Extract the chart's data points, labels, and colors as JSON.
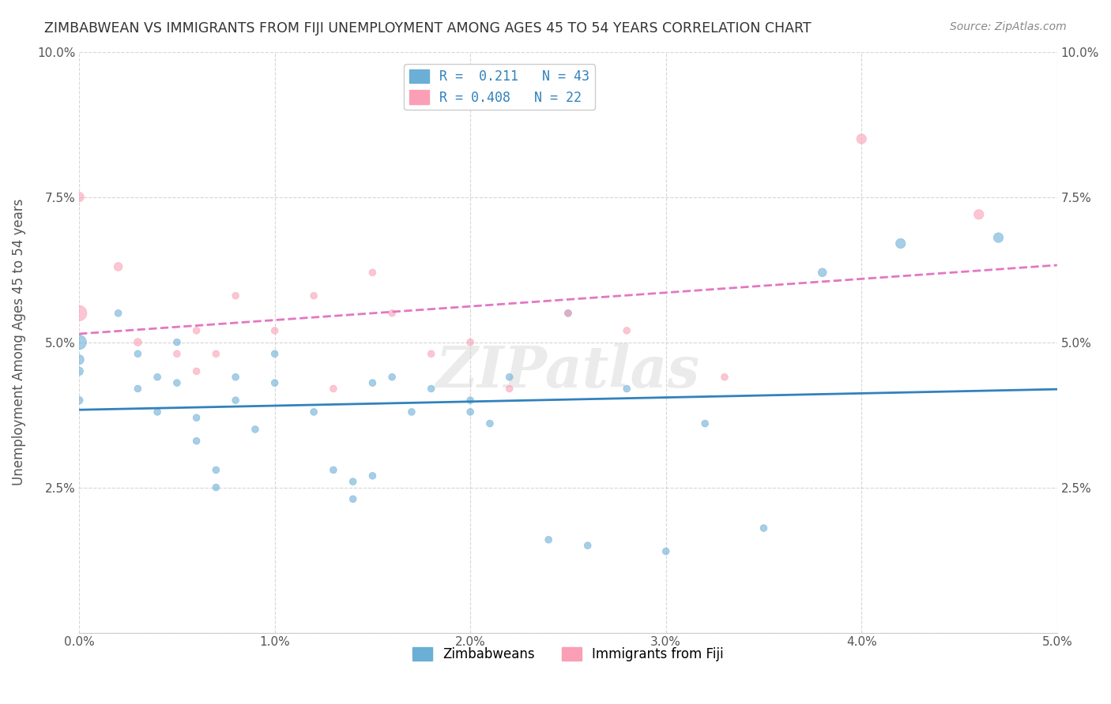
{
  "title": "ZIMBABWEAN VS IMMIGRANTS FROM FIJI UNEMPLOYMENT AMONG AGES 45 TO 54 YEARS CORRELATION CHART",
  "source": "Source: ZipAtlas.com",
  "ylabel": "Unemployment Among Ages 45 to 54 years",
  "xlabel": "",
  "xlim": [
    0.0,
    0.05
  ],
  "ylim": [
    0.0,
    0.1
  ],
  "xticks": [
    0.0,
    0.01,
    0.02,
    0.03,
    0.04,
    0.05
  ],
  "yticks": [
    0.0,
    0.025,
    0.05,
    0.075,
    0.1
  ],
  "xtick_labels": [
    "0.0%",
    "1.0%",
    "2.0%",
    "3.0%",
    "4.0%",
    "5.0%"
  ],
  "ytick_labels": [
    "",
    "2.5%",
    "5.0%",
    "7.5%",
    "10.0%"
  ],
  "blue_color": "#6baed6",
  "pink_color": "#fa9fb5",
  "blue_line_color": "#3182bd",
  "pink_line_color": "#e377c2",
  "legend_r1": "R =  0.211",
  "legend_n1": "N = 43",
  "legend_r2": "R = 0.408",
  "legend_n2": "N = 22",
  "legend_label1": "Zimbabweans",
  "legend_label2": "Immigrants from Fiji",
  "blue_x": [
    0.0,
    0.0,
    0.0,
    0.0,
    0.002,
    0.003,
    0.003,
    0.004,
    0.004,
    0.005,
    0.005,
    0.006,
    0.006,
    0.007,
    0.007,
    0.008,
    0.008,
    0.009,
    0.01,
    0.01,
    0.012,
    0.013,
    0.014,
    0.014,
    0.015,
    0.015,
    0.016,
    0.017,
    0.018,
    0.02,
    0.02,
    0.021,
    0.022,
    0.024,
    0.025,
    0.026,
    0.028,
    0.03,
    0.032,
    0.035,
    0.038,
    0.042,
    0.047
  ],
  "blue_y": [
    0.05,
    0.047,
    0.045,
    0.04,
    0.055,
    0.048,
    0.042,
    0.038,
    0.044,
    0.05,
    0.043,
    0.037,
    0.033,
    0.028,
    0.025,
    0.04,
    0.044,
    0.035,
    0.043,
    0.048,
    0.038,
    0.028,
    0.026,
    0.023,
    0.027,
    0.043,
    0.044,
    0.038,
    0.042,
    0.04,
    0.038,
    0.036,
    0.044,
    0.016,
    0.055,
    0.015,
    0.042,
    0.014,
    0.036,
    0.018,
    0.062,
    0.067,
    0.068
  ],
  "blue_sizes": [
    180,
    80,
    60,
    50,
    40,
    40,
    40,
    40,
    40,
    40,
    40,
    40,
    40,
    40,
    40,
    40,
    40,
    40,
    40,
    40,
    40,
    40,
    40,
    40,
    40,
    40,
    40,
    40,
    40,
    40,
    40,
    40,
    40,
    40,
    40,
    40,
    40,
    40,
    40,
    40,
    60,
    80,
    80
  ],
  "pink_x": [
    0.0,
    0.0,
    0.002,
    0.003,
    0.005,
    0.006,
    0.006,
    0.007,
    0.008,
    0.01,
    0.012,
    0.013,
    0.015,
    0.016,
    0.018,
    0.02,
    0.022,
    0.025,
    0.028,
    0.033,
    0.04,
    0.046
  ],
  "pink_y": [
    0.055,
    0.075,
    0.063,
    0.05,
    0.048,
    0.052,
    0.045,
    0.048,
    0.058,
    0.052,
    0.058,
    0.042,
    0.062,
    0.055,
    0.048,
    0.05,
    0.042,
    0.055,
    0.052,
    0.044,
    0.085,
    0.072
  ],
  "pink_sizes": [
    200,
    80,
    60,
    50,
    40,
    40,
    40,
    40,
    40,
    40,
    40,
    40,
    40,
    40,
    40,
    40,
    40,
    40,
    40,
    40,
    80,
    80
  ],
  "watermark": "ZIPatlas",
  "background_color": "#ffffff",
  "grid_color": "#cccccc"
}
